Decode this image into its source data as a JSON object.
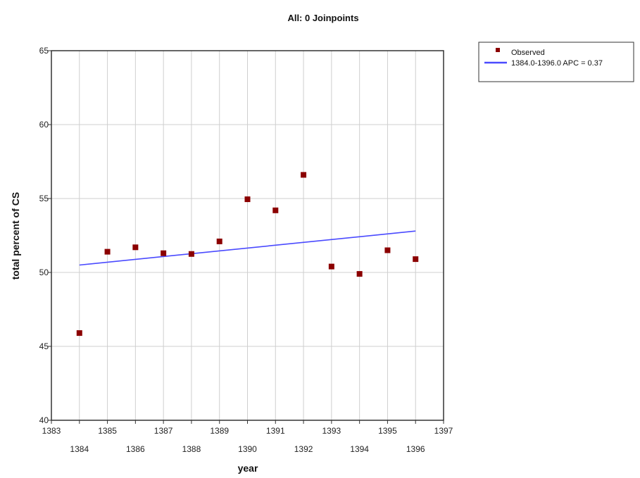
{
  "chart_data": {
    "type": "scatter",
    "title": "All: 0 Joinpoints",
    "xlabel": "year",
    "ylabel": "total percent of CS",
    "xlim": [
      1383,
      1397
    ],
    "ylim": [
      40,
      65
    ],
    "x_ticks": [
      1383,
      1384,
      1385,
      1386,
      1387,
      1388,
      1389,
      1390,
      1391,
      1392,
      1393,
      1394,
      1395,
      1396,
      1397
    ],
    "y_ticks": [
      40,
      45,
      50,
      55,
      60,
      65
    ],
    "grid": true,
    "legend_position": "top-right, outside plot",
    "series": [
      {
        "name": "Observed",
        "kind": "points",
        "color": "#8b0000",
        "x": [
          1384,
          1385,
          1386,
          1387,
          1388,
          1389,
          1390,
          1391,
          1392,
          1393,
          1394,
          1395,
          1396
        ],
        "y": [
          45.9,
          51.4,
          51.7,
          51.3,
          51.25,
          52.1,
          54.95,
          54.2,
          56.6,
          50.4,
          49.9,
          51.5,
          50.9
        ]
      },
      {
        "name": "1384.0-1396.0 APC  = 0.37",
        "kind": "line",
        "color": "#4a4aff",
        "x": [
          1384,
          1396
        ],
        "y": [
          50.5,
          52.8
        ]
      }
    ]
  }
}
